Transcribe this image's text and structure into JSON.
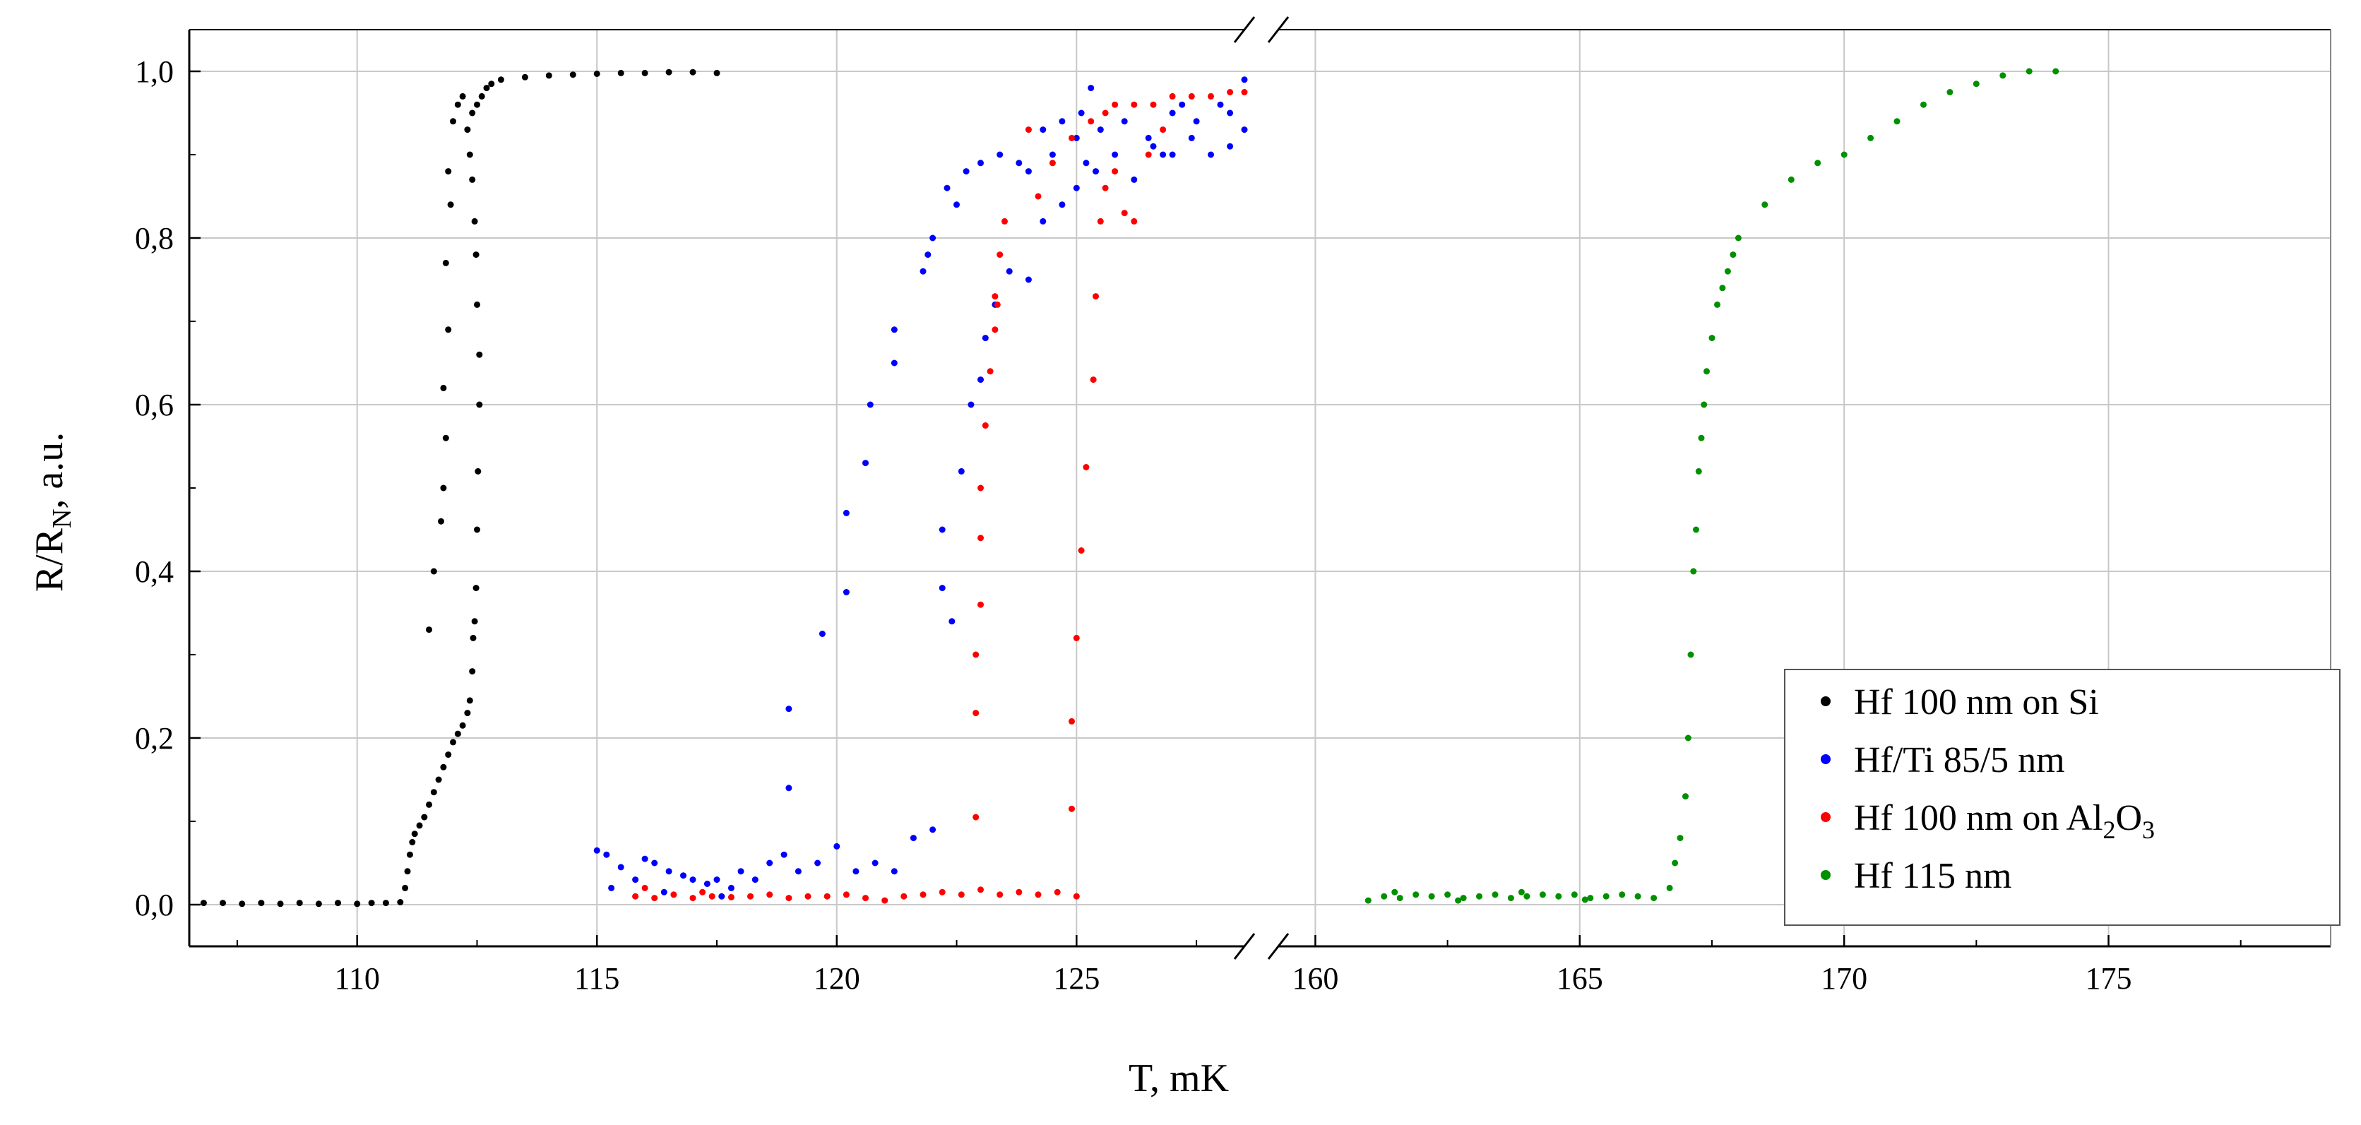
{
  "chart_data": {
    "type": "scatter",
    "xlabel": "T, mK",
    "ylabel": {
      "main": "R/R",
      "sub": "N",
      "rest": ", a.u."
    },
    "x_break": {
      "left_range": [
        106.5,
        128.5
      ],
      "right_range": [
        159.3,
        179.2
      ]
    },
    "x_ticks_left": [
      110,
      115,
      120,
      125
    ],
    "x_ticks_right": [
      160,
      165,
      170,
      175
    ],
    "x_tick_labels_left": [
      "110",
      "115",
      "120",
      "125"
    ],
    "x_tick_labels_right": [
      "160",
      "165",
      "170",
      "175"
    ],
    "ylim": [
      -0.05,
      1.05
    ],
    "y_ticks": [
      0.0,
      0.2,
      0.4,
      0.6,
      0.8,
      1.0
    ],
    "y_tick_labels": [
      "0,0",
      "0,2",
      "0,4",
      "0,6",
      "0,8",
      "1,0"
    ],
    "grid": true,
    "legend_position": "bottom-right",
    "series": [
      {
        "name": "Hf 100 nm on Si",
        "legend": {
          "main": "Hf 100 nm on Si",
          "sub": "",
          "rest": ""
        },
        "color": "#000000",
        "points": [
          [
            106.8,
            0.002
          ],
          [
            107.2,
            0.002
          ],
          [
            107.6,
            0.001
          ],
          [
            108.0,
            0.002
          ],
          [
            108.4,
            0.001
          ],
          [
            108.8,
            0.002
          ],
          [
            109.2,
            0.001
          ],
          [
            109.6,
            0.002
          ],
          [
            110.0,
            0.001
          ],
          [
            110.3,
            0.002
          ],
          [
            110.6,
            0.002
          ],
          [
            110.9,
            0.003
          ],
          [
            111.0,
            0.02
          ],
          [
            111.05,
            0.04
          ],
          [
            111.1,
            0.06
          ],
          [
            111.15,
            0.075
          ],
          [
            111.2,
            0.085
          ],
          [
            111.3,
            0.095
          ],
          [
            111.4,
            0.105
          ],
          [
            111.5,
            0.12
          ],
          [
            111.6,
            0.135
          ],
          [
            111.7,
            0.15
          ],
          [
            111.8,
            0.165
          ],
          [
            111.9,
            0.18
          ],
          [
            112.0,
            0.195
          ],
          [
            112.1,
            0.205
          ],
          [
            112.2,
            0.215
          ],
          [
            112.3,
            0.23
          ],
          [
            112.35,
            0.245
          ],
          [
            112.4,
            0.28
          ],
          [
            112.42,
            0.32
          ],
          [
            112.45,
            0.34
          ],
          [
            112.48,
            0.38
          ],
          [
            112.5,
            0.45
          ],
          [
            112.52,
            0.52
          ],
          [
            112.55,
            0.6
          ],
          [
            112.55,
            0.66
          ],
          [
            112.5,
            0.72
          ],
          [
            112.48,
            0.78
          ],
          [
            112.45,
            0.82
          ],
          [
            112.4,
            0.87
          ],
          [
            112.35,
            0.9
          ],
          [
            112.3,
            0.93
          ],
          [
            112.4,
            0.95
          ],
          [
            112.5,
            0.96
          ],
          [
            112.6,
            0.97
          ],
          [
            112.7,
            0.98
          ],
          [
            112.8,
            0.985
          ],
          [
            111.5,
            0.33
          ],
          [
            111.6,
            0.4
          ],
          [
            111.75,
            0.46
          ],
          [
            111.8,
            0.5
          ],
          [
            111.85,
            0.56
          ],
          [
            111.8,
            0.62
          ],
          [
            111.9,
            0.69
          ],
          [
            111.85,
            0.77
          ],
          [
            111.95,
            0.84
          ],
          [
            111.9,
            0.88
          ],
          [
            112.0,
            0.94
          ],
          [
            112.1,
            0.96
          ],
          [
            112.2,
            0.97
          ],
          [
            113.0,
            0.99
          ],
          [
            113.5,
            0.993
          ],
          [
            114.0,
            0.995
          ],
          [
            114.5,
            0.996
          ],
          [
            115.0,
            0.997
          ],
          [
            115.5,
            0.998
          ],
          [
            116.0,
            0.998
          ],
          [
            116.5,
            0.999
          ],
          [
            117.0,
            0.999
          ],
          [
            117.5,
            0.998
          ]
        ]
      },
      {
        "name": "Hf/Ti 85/5 nm",
        "legend": {
          "main": "Hf/Ti 85/5 nm",
          "sub": "",
          "rest": ""
        },
        "color": "#0000ff",
        "points": [
          [
            115.0,
            0.065
          ],
          [
            115.2,
            0.06
          ],
          [
            115.5,
            0.045
          ],
          [
            115.8,
            0.03
          ],
          [
            116.0,
            0.055
          ],
          [
            116.2,
            0.05
          ],
          [
            116.5,
            0.04
          ],
          [
            116.8,
            0.035
          ],
          [
            117.0,
            0.03
          ],
          [
            117.3,
            0.025
          ],
          [
            117.5,
            0.03
          ],
          [
            117.8,
            0.02
          ],
          [
            118.0,
            0.04
          ],
          [
            118.3,
            0.03
          ],
          [
            118.6,
            0.05
          ],
          [
            118.9,
            0.06
          ],
          [
            119.2,
            0.04
          ],
          [
            119.6,
            0.05
          ],
          [
            120.0,
            0.07
          ],
          [
            120.4,
            0.04
          ],
          [
            120.8,
            0.05
          ],
          [
            121.2,
            0.04
          ],
          [
            121.6,
            0.08
          ],
          [
            122.0,
            0.09
          ],
          [
            115.3,
            0.02
          ],
          [
            116.4,
            0.015
          ],
          [
            117.6,
            0.01
          ],
          [
            119.0,
            0.14
          ],
          [
            119.0,
            0.235
          ],
          [
            119.7,
            0.325
          ],
          [
            120.2,
            0.375
          ],
          [
            120.2,
            0.47
          ],
          [
            120.6,
            0.53
          ],
          [
            120.7,
            0.6
          ],
          [
            121.2,
            0.65
          ],
          [
            121.2,
            0.69
          ],
          [
            121.9,
            0.78
          ],
          [
            121.8,
            0.76
          ],
          [
            122.3,
            0.86
          ],
          [
            122.7,
            0.88
          ],
          [
            122.0,
            0.8
          ],
          [
            122.5,
            0.84
          ],
          [
            123.0,
            0.89
          ],
          [
            123.4,
            0.9
          ],
          [
            123.8,
            0.89
          ],
          [
            124.3,
            0.93
          ],
          [
            124.7,
            0.94
          ],
          [
            125.1,
            0.95
          ],
          [
            125.3,
            0.98
          ],
          [
            122.2,
            0.38
          ],
          [
            122.4,
            0.34
          ],
          [
            122.2,
            0.45
          ],
          [
            122.6,
            0.52
          ],
          [
            122.8,
            0.6
          ],
          [
            123.0,
            0.63
          ],
          [
            123.1,
            0.68
          ],
          [
            123.3,
            0.72
          ],
          [
            123.6,
            0.76
          ],
          [
            124.0,
            0.75
          ],
          [
            124.3,
            0.82
          ],
          [
            124.7,
            0.84
          ],
          [
            125.0,
            0.86
          ],
          [
            125.4,
            0.88
          ],
          [
            125.8,
            0.9
          ],
          [
            126.2,
            0.87
          ],
          [
            126.6,
            0.91
          ],
          [
            127.0,
            0.9
          ],
          [
            127.4,
            0.92
          ],
          [
            127.8,
            0.9
          ],
          [
            128.2,
            0.91
          ],
          [
            128.5,
            0.93
          ],
          [
            124.0,
            0.88
          ],
          [
            124.5,
            0.9
          ],
          [
            125.0,
            0.92
          ],
          [
            125.5,
            0.93
          ],
          [
            126.0,
            0.94
          ],
          [
            126.5,
            0.92
          ],
          [
            127.0,
            0.95
          ],
          [
            127.5,
            0.94
          ],
          [
            128.0,
            0.96
          ],
          [
            128.5,
            0.99
          ],
          [
            128.2,
            0.95
          ],
          [
            127.2,
            0.96
          ],
          [
            126.8,
            0.9
          ],
          [
            125.2,
            0.89
          ]
        ]
      },
      {
        "name": "Hf 100 nm on Al2O3",
        "legend": {
          "main": "Hf 100 nm on Al",
          "sub": "2",
          "rest": "O",
          "sub2": "3"
        },
        "color": "#ff0000",
        "points": [
          [
            115.8,
            0.01
          ],
          [
            116.2,
            0.008
          ],
          [
            116.6,
            0.012
          ],
          [
            117.0,
            0.008
          ],
          [
            117.4,
            0.01
          ],
          [
            117.8,
            0.009
          ],
          [
            118.2,
            0.01
          ],
          [
            118.6,
            0.012
          ],
          [
            119.0,
            0.008
          ],
          [
            119.4,
            0.01
          ],
          [
            119.8,
            0.01
          ],
          [
            120.2,
            0.012
          ],
          [
            120.6,
            0.008
          ],
          [
            121.0,
            0.005
          ],
          [
            121.4,
            0.01
          ],
          [
            121.8,
            0.012
          ],
          [
            122.2,
            0.015
          ],
          [
            122.6,
            0.012
          ],
          [
            123.0,
            0.018
          ],
          [
            123.4,
            0.012
          ],
          [
            123.8,
            0.015
          ],
          [
            124.2,
            0.012
          ],
          [
            124.6,
            0.015
          ],
          [
            125.0,
            0.01
          ],
          [
            116.0,
            0.02
          ],
          [
            117.2,
            0.015
          ],
          [
            122.9,
            0.105
          ],
          [
            122.9,
            0.23
          ],
          [
            122.9,
            0.3
          ],
          [
            123.0,
            0.36
          ],
          [
            123.0,
            0.44
          ],
          [
            123.0,
            0.5
          ],
          [
            123.1,
            0.575
          ],
          [
            123.2,
            0.64
          ],
          [
            123.3,
            0.73
          ],
          [
            123.35,
            0.72
          ],
          [
            123.4,
            0.78
          ],
          [
            123.5,
            0.82
          ],
          [
            123.3,
            0.69
          ],
          [
            124.9,
            0.115
          ],
          [
            124.9,
            0.22
          ],
          [
            125.0,
            0.32
          ],
          [
            125.1,
            0.425
          ],
          [
            125.2,
            0.525
          ],
          [
            125.35,
            0.63
          ],
          [
            125.4,
            0.73
          ],
          [
            125.5,
            0.82
          ],
          [
            125.6,
            0.86
          ],
          [
            125.8,
            0.88
          ],
          [
            126.0,
            0.83
          ],
          [
            126.2,
            0.82
          ],
          [
            126.5,
            0.9
          ],
          [
            126.8,
            0.93
          ],
          [
            124.2,
            0.85
          ],
          [
            124.5,
            0.89
          ],
          [
            124.9,
            0.92
          ],
          [
            125.3,
            0.94
          ],
          [
            125.8,
            0.96
          ],
          [
            126.2,
            0.96
          ],
          [
            126.6,
            0.96
          ],
          [
            127.0,
            0.97
          ],
          [
            127.4,
            0.97
          ],
          [
            127.8,
            0.97
          ],
          [
            128.2,
            0.975
          ],
          [
            128.5,
            0.975
          ],
          [
            124.0,
            0.93
          ],
          [
            125.6,
            0.95
          ]
        ]
      },
      {
        "name": "Hf 115 nm",
        "legend": {
          "main": "Hf 115 nm",
          "sub": "",
          "rest": ""
        },
        "color": "#009000",
        "points": [
          [
            161.0,
            0.005
          ],
          [
            161.3,
            0.01
          ],
          [
            161.6,
            0.008
          ],
          [
            161.9,
            0.012
          ],
          [
            162.2,
            0.01
          ],
          [
            162.5,
            0.012
          ],
          [
            162.8,
            0.008
          ],
          [
            163.1,
            0.01
          ],
          [
            163.4,
            0.012
          ],
          [
            163.7,
            0.008
          ],
          [
            164.0,
            0.01
          ],
          [
            164.3,
            0.012
          ],
          [
            164.6,
            0.01
          ],
          [
            164.9,
            0.012
          ],
          [
            165.2,
            0.008
          ],
          [
            165.5,
            0.01
          ],
          [
            165.8,
            0.012
          ],
          [
            166.1,
            0.01
          ],
          [
            166.4,
            0.008
          ],
          [
            161.5,
            0.015
          ],
          [
            162.7,
            0.005
          ],
          [
            163.9,
            0.015
          ],
          [
            165.1,
            0.006
          ],
          [
            166.7,
            0.02
          ],
          [
            166.8,
            0.05
          ],
          [
            166.9,
            0.08
          ],
          [
            167.0,
            0.13
          ],
          [
            167.05,
            0.2
          ],
          [
            167.1,
            0.3
          ],
          [
            167.15,
            0.4
          ],
          [
            167.2,
            0.45
          ],
          [
            167.25,
            0.52
          ],
          [
            167.3,
            0.56
          ],
          [
            167.35,
            0.6
          ],
          [
            167.4,
            0.64
          ],
          [
            167.5,
            0.68
          ],
          [
            167.6,
            0.72
          ],
          [
            167.7,
            0.74
          ],
          [
            167.8,
            0.76
          ],
          [
            167.9,
            0.78
          ],
          [
            168.0,
            0.8
          ],
          [
            168.5,
            0.84
          ],
          [
            169.0,
            0.87
          ],
          [
            169.5,
            0.89
          ],
          [
            170.0,
            0.9
          ],
          [
            170.5,
            0.92
          ],
          [
            171.0,
            0.94
          ],
          [
            171.5,
            0.96
          ],
          [
            172.0,
            0.975
          ],
          [
            172.5,
            0.985
          ],
          [
            173.0,
            0.995
          ],
          [
            173.5,
            1.0
          ],
          [
            174.0,
            1.0
          ]
        ]
      }
    ]
  }
}
